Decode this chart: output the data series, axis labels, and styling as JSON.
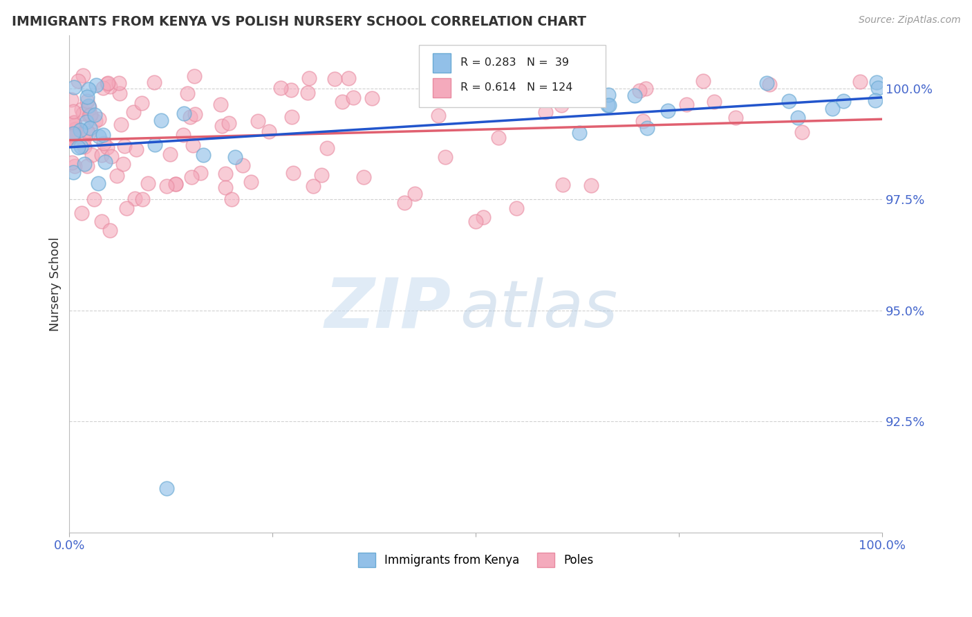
{
  "title": "IMMIGRANTS FROM KENYA VS POLISH NURSERY SCHOOL CORRELATION CHART",
  "source": "Source: ZipAtlas.com",
  "ylabel": "Nursery School",
  "xlim": [
    0,
    100
  ],
  "ylim": [
    90.0,
    101.2
  ],
  "yticks": [
    92.5,
    95.0,
    97.5,
    100.0
  ],
  "ytick_labels": [
    "92.5%",
    "95.0%",
    "97.5%",
    "100.0%"
  ],
  "xtick_labels": [
    "0.0%",
    "",
    "",
    "",
    "100.0%"
  ],
  "kenya_R": 0.283,
  "kenya_N": 39,
  "poles_R": 0.614,
  "poles_N": 124,
  "kenya_color": "#92C0E8",
  "kenya_edge": "#6AAAD4",
  "poles_color": "#F4AABC",
  "poles_edge": "#E88AA0",
  "kenya_line_color": "#2255CC",
  "poles_line_color": "#E06070",
  "legend_kenya": "Immigrants from Kenya",
  "legend_poles": "Poles",
  "watermark_zip_color": "#C8DCF0",
  "watermark_atlas_color": "#B0C8E0"
}
